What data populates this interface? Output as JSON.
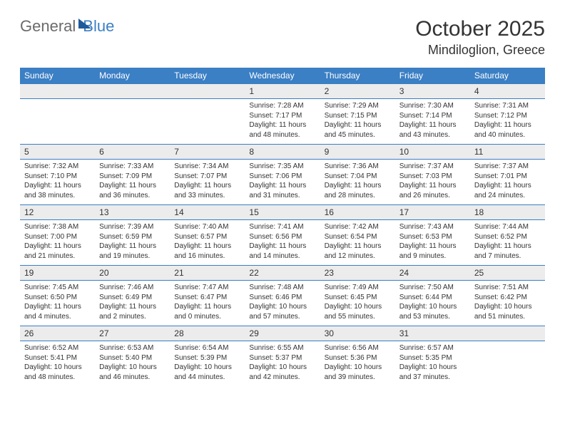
{
  "brand": {
    "part1": "General",
    "part2": "Blue"
  },
  "title": "October 2025",
  "location": "Mindiloglion, Greece",
  "colors": {
    "header_bg": "#3b7fc4",
    "daynum_bg": "#ececec",
    "rule": "#3b7fc4"
  },
  "weekdays": [
    "Sunday",
    "Monday",
    "Tuesday",
    "Wednesday",
    "Thursday",
    "Friday",
    "Saturday"
  ],
  "weeks": [
    [
      null,
      null,
      null,
      {
        "n": "1",
        "sunrise": "7:28 AM",
        "sunset": "7:17 PM",
        "daylight": "11 hours and 48 minutes."
      },
      {
        "n": "2",
        "sunrise": "7:29 AM",
        "sunset": "7:15 PM",
        "daylight": "11 hours and 45 minutes."
      },
      {
        "n": "3",
        "sunrise": "7:30 AM",
        "sunset": "7:14 PM",
        "daylight": "11 hours and 43 minutes."
      },
      {
        "n": "4",
        "sunrise": "7:31 AM",
        "sunset": "7:12 PM",
        "daylight": "11 hours and 40 minutes."
      }
    ],
    [
      {
        "n": "5",
        "sunrise": "7:32 AM",
        "sunset": "7:10 PM",
        "daylight": "11 hours and 38 minutes."
      },
      {
        "n": "6",
        "sunrise": "7:33 AM",
        "sunset": "7:09 PM",
        "daylight": "11 hours and 36 minutes."
      },
      {
        "n": "7",
        "sunrise": "7:34 AM",
        "sunset": "7:07 PM",
        "daylight": "11 hours and 33 minutes."
      },
      {
        "n": "8",
        "sunrise": "7:35 AM",
        "sunset": "7:06 PM",
        "daylight": "11 hours and 31 minutes."
      },
      {
        "n": "9",
        "sunrise": "7:36 AM",
        "sunset": "7:04 PM",
        "daylight": "11 hours and 28 minutes."
      },
      {
        "n": "10",
        "sunrise": "7:37 AM",
        "sunset": "7:03 PM",
        "daylight": "11 hours and 26 minutes."
      },
      {
        "n": "11",
        "sunrise": "7:37 AM",
        "sunset": "7:01 PM",
        "daylight": "11 hours and 24 minutes."
      }
    ],
    [
      {
        "n": "12",
        "sunrise": "7:38 AM",
        "sunset": "7:00 PM",
        "daylight": "11 hours and 21 minutes."
      },
      {
        "n": "13",
        "sunrise": "7:39 AM",
        "sunset": "6:59 PM",
        "daylight": "11 hours and 19 minutes."
      },
      {
        "n": "14",
        "sunrise": "7:40 AM",
        "sunset": "6:57 PM",
        "daylight": "11 hours and 16 minutes."
      },
      {
        "n": "15",
        "sunrise": "7:41 AM",
        "sunset": "6:56 PM",
        "daylight": "11 hours and 14 minutes."
      },
      {
        "n": "16",
        "sunrise": "7:42 AM",
        "sunset": "6:54 PM",
        "daylight": "11 hours and 12 minutes."
      },
      {
        "n": "17",
        "sunrise": "7:43 AM",
        "sunset": "6:53 PM",
        "daylight": "11 hours and 9 minutes."
      },
      {
        "n": "18",
        "sunrise": "7:44 AM",
        "sunset": "6:52 PM",
        "daylight": "11 hours and 7 minutes."
      }
    ],
    [
      {
        "n": "19",
        "sunrise": "7:45 AM",
        "sunset": "6:50 PM",
        "daylight": "11 hours and 4 minutes."
      },
      {
        "n": "20",
        "sunrise": "7:46 AM",
        "sunset": "6:49 PM",
        "daylight": "11 hours and 2 minutes."
      },
      {
        "n": "21",
        "sunrise": "7:47 AM",
        "sunset": "6:47 PM",
        "daylight": "11 hours and 0 minutes."
      },
      {
        "n": "22",
        "sunrise": "7:48 AM",
        "sunset": "6:46 PM",
        "daylight": "10 hours and 57 minutes."
      },
      {
        "n": "23",
        "sunrise": "7:49 AM",
        "sunset": "6:45 PM",
        "daylight": "10 hours and 55 minutes."
      },
      {
        "n": "24",
        "sunrise": "7:50 AM",
        "sunset": "6:44 PM",
        "daylight": "10 hours and 53 minutes."
      },
      {
        "n": "25",
        "sunrise": "7:51 AM",
        "sunset": "6:42 PM",
        "daylight": "10 hours and 51 minutes."
      }
    ],
    [
      {
        "n": "26",
        "sunrise": "6:52 AM",
        "sunset": "5:41 PM",
        "daylight": "10 hours and 48 minutes."
      },
      {
        "n": "27",
        "sunrise": "6:53 AM",
        "sunset": "5:40 PM",
        "daylight": "10 hours and 46 minutes."
      },
      {
        "n": "28",
        "sunrise": "6:54 AM",
        "sunset": "5:39 PM",
        "daylight": "10 hours and 44 minutes."
      },
      {
        "n": "29",
        "sunrise": "6:55 AM",
        "sunset": "5:37 PM",
        "daylight": "10 hours and 42 minutes."
      },
      {
        "n": "30",
        "sunrise": "6:56 AM",
        "sunset": "5:36 PM",
        "daylight": "10 hours and 39 minutes."
      },
      {
        "n": "31",
        "sunrise": "6:57 AM",
        "sunset": "5:35 PM",
        "daylight": "10 hours and 37 minutes."
      },
      null
    ]
  ],
  "labels": {
    "sunrise": "Sunrise:",
    "sunset": "Sunset:",
    "daylight": "Daylight:"
  }
}
